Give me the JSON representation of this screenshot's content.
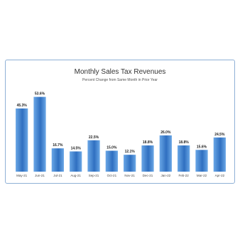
{
  "chart_data": {
    "type": "bar",
    "title": "Monthly Sales Tax Revenues",
    "subtitle": "Percent Change from Same Month in Prior Year",
    "categories": [
      "May-21",
      "Jun-21",
      "Jul-21",
      "Aug-21",
      "Sep-21",
      "Oct-21",
      "Nov-21",
      "Dec-21",
      "Jan-22",
      "Feb-22",
      "Mar-22",
      "Apr-22"
    ],
    "values": [
      45.3,
      53.6,
      16.7,
      14.5,
      22.5,
      15.0,
      12.1,
      18.8,
      26.0,
      18.8,
      15.6,
      24.5
    ],
    "data_labels": [
      "45.3%",
      "53.6%",
      "16.7%",
      "14.5%",
      "22.5%",
      "15.0%",
      "12.1%",
      "18.8%",
      "26.0%",
      "18.8%",
      "15.6%",
      "24.5%"
    ],
    "xlabel": "",
    "ylabel": "",
    "ylim": [
      0,
      60
    ],
    "grid": false,
    "legend": "none",
    "colors": {
      "bar_light": "#6aa7e6",
      "bar_dark": "#2f6fc0",
      "frame": "#8fb0d6"
    }
  }
}
